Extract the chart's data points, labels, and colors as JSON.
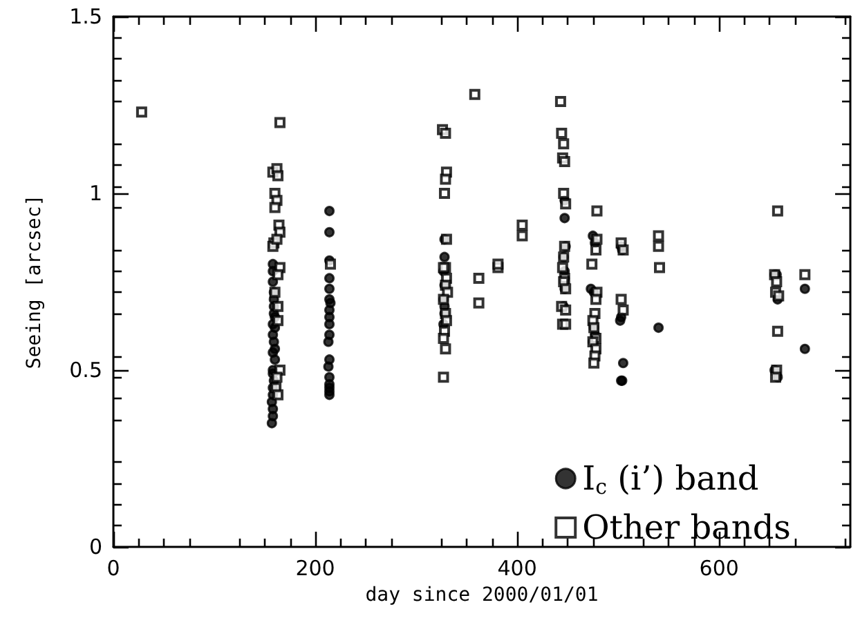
{
  "chart_data": {
    "type": "scatter",
    "xlabel": "day since 2000/01/01",
    "ylabel": "Seeing [arcsec]",
    "xlim": [
      0,
      730
    ],
    "xticks": [
      0,
      200,
      400,
      600
    ],
    "ylim": [
      0,
      1.5
    ],
    "yticks": [
      0,
      0.5,
      1,
      1.5
    ],
    "grid": false,
    "legend": "bottom right",
    "series": [
      {
        "name": "I$_{c}$ (i’) band",
        "color": "#000000",
        "marker": "circle",
        "x": [
          158,
          158,
          158,
          159,
          159,
          159,
          159,
          160,
          158,
          160,
          158,
          159,
          160,
          158,
          160,
          158,
          158,
          159,
          158,
          158,
          157,
          158,
          158,
          157,
          214,
          214,
          214,
          214,
          214,
          214,
          215,
          214,
          214,
          214,
          214,
          213,
          214,
          213,
          214,
          214,
          214,
          214,
          214,
          328,
          328,
          327,
          328,
          327,
          328,
          328,
          327,
          447,
          447,
          448,
          446,
          447,
          447,
          447,
          446,
          475,
          477,
          473,
          476,
          476,
          477,
          475,
          503,
          504,
          503,
          502,
          505,
          503,
          504,
          540,
          657,
          655,
          658,
          655,
          658,
          685,
          685
        ],
        "values": [
          0.8,
          0.78,
          0.75,
          0.72,
          0.7,
          0.68,
          0.66,
          0.65,
          0.63,
          0.62,
          0.6,
          0.58,
          0.56,
          0.55,
          0.53,
          0.5,
          0.49,
          0.47,
          0.45,
          0.43,
          0.41,
          0.39,
          0.37,
          0.35,
          0.95,
          0.89,
          0.81,
          0.76,
          0.73,
          0.7,
          0.69,
          0.67,
          0.65,
          0.63,
          0.6,
          0.58,
          0.53,
          0.51,
          0.48,
          0.46,
          0.45,
          0.44,
          0.43,
          0.87,
          0.82,
          0.78,
          0.74,
          0.7,
          0.68,
          0.66,
          0.63,
          0.98,
          0.93,
          0.85,
          0.82,
          0.78,
          0.76,
          0.73,
          0.68,
          0.88,
          0.86,
          0.73,
          0.72,
          0.62,
          0.6,
          0.58,
          0.85,
          0.84,
          0.65,
          0.64,
          0.52,
          0.47,
          0.47,
          0.62,
          0.77,
          0.77,
          0.7,
          0.5,
          0.48,
          0.73,
          0.56
        ]
      },
      {
        "name": "Other bands",
        "color": "#000000",
        "marker": "square",
        "x": [
          28,
          165,
          158,
          162,
          163,
          160,
          162,
          160,
          164,
          165,
          159,
          158,
          162,
          165,
          163,
          160,
          163,
          163,
          165,
          162,
          161,
          163,
          215,
          326,
          329,
          330,
          329,
          328,
          330,
          329,
          327,
          330,
          329,
          331,
          327,
          329,
          330,
          328,
          327,
          329,
          327,
          358,
          362,
          362,
          381,
          381,
          405,
          405,
          443,
          444,
          446,
          445,
          447,
          446,
          448,
          447,
          446,
          445,
          447,
          446,
          448,
          444,
          448,
          445,
          448,
          479,
          479,
          478,
          474,
          479,
          478,
          477,
          475,
          476,
          478,
          475,
          478,
          477,
          476,
          503,
          505,
          503,
          505,
          540,
          540,
          541,
          658,
          655,
          657,
          656,
          659,
          658,
          657,
          656,
          685
        ],
        "values": [
          1.23,
          1.2,
          1.06,
          1.07,
          1.05,
          1.0,
          0.98,
          0.96,
          0.91,
          0.89,
          0.86,
          0.85,
          0.87,
          0.79,
          0.77,
          0.72,
          0.68,
          0.64,
          0.5,
          0.48,
          0.45,
          0.43,
          0.8,
          1.18,
          1.17,
          1.06,
          1.04,
          1.0,
          0.87,
          0.79,
          0.79,
          0.76,
          0.74,
          0.72,
          0.7,
          0.66,
          0.64,
          0.61,
          0.59,
          0.56,
          0.48,
          1.28,
          0.76,
          0.69,
          0.79,
          0.8,
          0.91,
          0.88,
          1.26,
          1.17,
          1.14,
          1.1,
          1.09,
          1.0,
          0.97,
          0.85,
          0.82,
          0.79,
          0.76,
          0.75,
          0.73,
          0.68,
          0.67,
          0.63,
          0.63,
          0.95,
          0.87,
          0.84,
          0.8,
          0.72,
          0.7,
          0.66,
          0.64,
          0.62,
          0.59,
          0.58,
          0.56,
          0.54,
          0.52,
          0.86,
          0.84,
          0.7,
          0.67,
          0.88,
          0.85,
          0.79,
          0.95,
          0.77,
          0.75,
          0.72,
          0.71,
          0.61,
          0.5,
          0.48,
          0.77
        ]
      }
    ]
  }
}
